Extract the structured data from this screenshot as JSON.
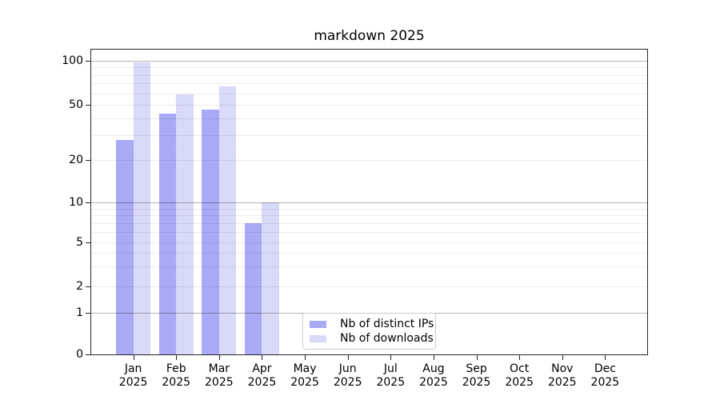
{
  "chart_data": {
    "type": "bar",
    "title": "markdown 2025",
    "x_unit": "month",
    "categories": [
      "Jan",
      "Feb",
      "Mar",
      "Apr",
      "May",
      "Jun",
      "Jul",
      "Aug",
      "Sep",
      "Oct",
      "Nov",
      "Dec"
    ],
    "year_label": "2025",
    "series": [
      {
        "name": "Nb of distinct IPs",
        "color": "#a9a9f5",
        "values": [
          28,
          43,
          46,
          7,
          0,
          0,
          0,
          0,
          0,
          0,
          0,
          0
        ]
      },
      {
        "name": "Nb of downloads",
        "color": "#d9d9f8",
        "values": [
          98,
          59,
          67,
          10,
          0,
          0,
          0,
          0,
          0,
          0,
          0,
          0
        ]
      }
    ],
    "y_axis": {
      "scale": "symlog",
      "tick_labels": [
        "0",
        "1",
        "2",
        "5",
        "10",
        "20",
        "50",
        "100"
      ],
      "tick_values": [
        0,
        1,
        2,
        5,
        10,
        20,
        50,
        100
      ],
      "major_grid_values": [
        1,
        10,
        100
      ],
      "minor_grid_values": [
        2,
        3,
        4,
        5,
        6,
        7,
        8,
        9,
        20,
        30,
        40,
        50,
        60,
        70,
        80,
        90
      ],
      "range": [
        0,
        110
      ]
    },
    "legend": {
      "position": "lower-center",
      "entries": [
        "Nb of distinct IPs",
        "Nb of downloads"
      ]
    },
    "grid": true,
    "colors": {
      "major_grid": "#b0b0b0",
      "minor_grid": "#ebebeb",
      "axis": "#262626",
      "text": "#000000",
      "background": "#ffffff"
    }
  }
}
